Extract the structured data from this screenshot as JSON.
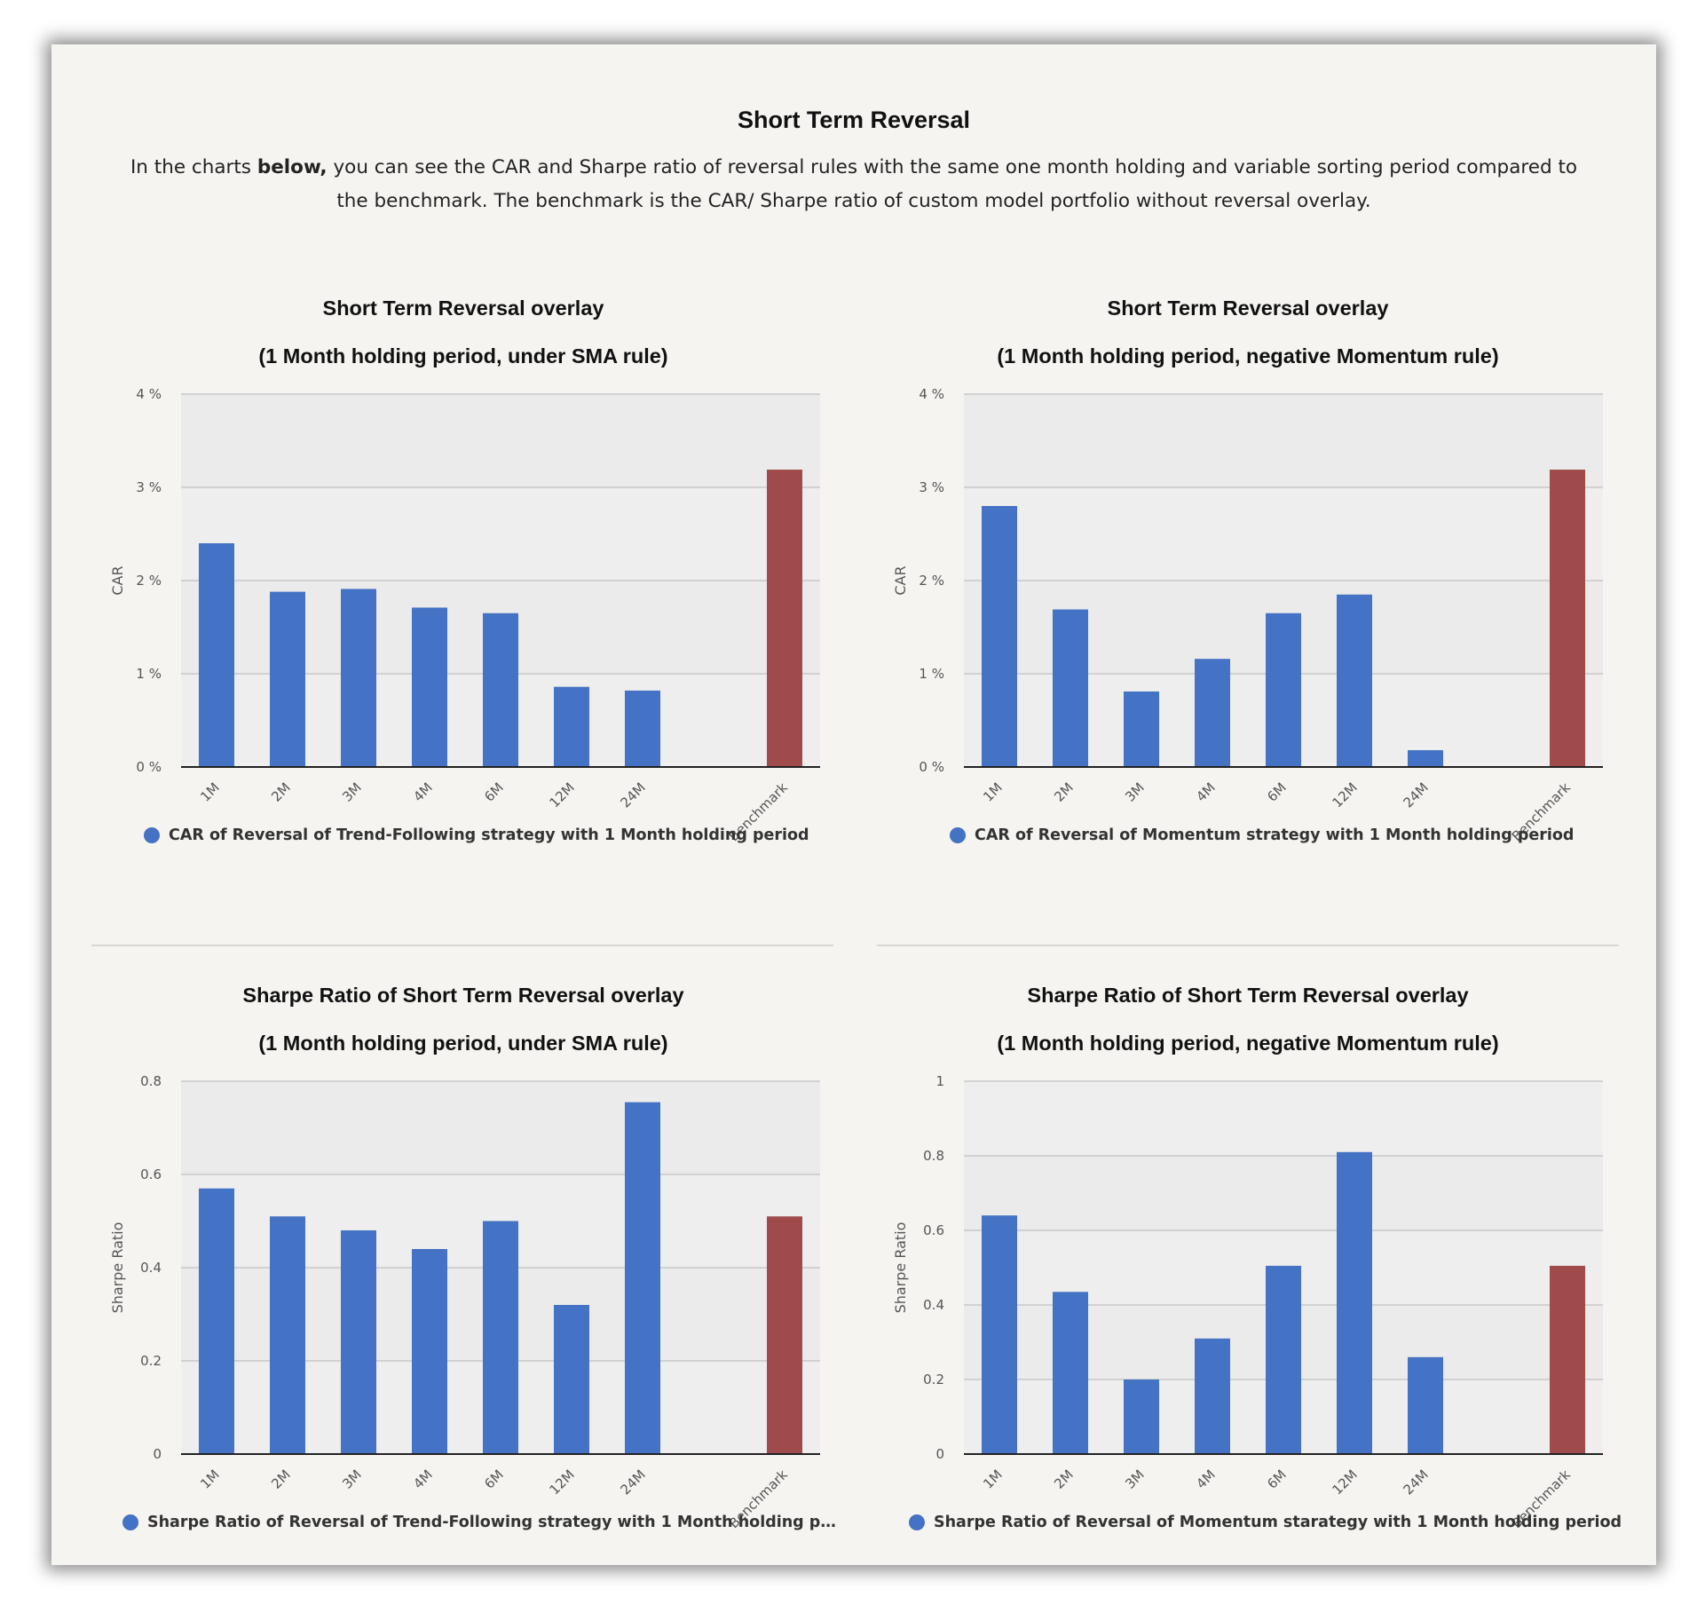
{
  "header": {
    "title": "Short Term Reversal",
    "intro_before": "In the charts ",
    "intro_bold": "below,",
    "intro_after": " you can see the CAR and Sharpe ratio of reversal rules with the same one month holding and variable sorting period compared to the benchmark. The benchmark is the CAR/ Sharpe ratio of custom model portfolio without reversal overlay."
  },
  "colors": {
    "bar": "#4472c4",
    "benchmark": "#a04b4b",
    "plot_bg": "#ebebeb",
    "grid": "#c8c8c8"
  },
  "chart_data": [
    {
      "type": "bar",
      "title": "Short Term Reversal overlay",
      "subtitle": "(1 Month holding period, under SMA rule)",
      "ylabel": "CAR",
      "categories": [
        "1M",
        "2M",
        "3M",
        "4M",
        "6M",
        "12M",
        "24M",
        "",
        "Benchmark"
      ],
      "values": [
        2.4,
        1.88,
        1.91,
        1.71,
        1.65,
        0.86,
        0.82,
        null,
        3.19
      ],
      "highlight": [
        false,
        false,
        false,
        false,
        false,
        false,
        false,
        false,
        true
      ],
      "ylim": [
        0,
        4
      ],
      "yticks": [
        0,
        1,
        2,
        3,
        4
      ],
      "ytick_labels": [
        "0 %",
        "1 %",
        "2 %",
        "3 %",
        "4 %"
      ],
      "grid": true,
      "legend": "CAR of Reversal of Trend-Following strategy with 1 Month holding period",
      "legend_position": "bottom"
    },
    {
      "type": "bar",
      "title": "Short Term Reversal overlay",
      "subtitle": "(1 Month holding period, negative Momentum rule)",
      "ylabel": "CAR",
      "categories": [
        "1M",
        "2M",
        "3M",
        "4M",
        "6M",
        "12M",
        "24M",
        "",
        "Benchmark"
      ],
      "values": [
        2.8,
        1.69,
        0.81,
        1.16,
        1.65,
        1.85,
        0.18,
        null,
        3.19
      ],
      "highlight": [
        false,
        false,
        false,
        false,
        false,
        false,
        false,
        false,
        true
      ],
      "ylim": [
        0,
        4
      ],
      "yticks": [
        0,
        1,
        2,
        3,
        4
      ],
      "ytick_labels": [
        "0 %",
        "1 %",
        "2 %",
        "3 %",
        "4 %"
      ],
      "grid": true,
      "legend": "CAR of Reversal of Momentum strategy with 1 Month holding period",
      "legend_position": "bottom"
    },
    {
      "type": "bar",
      "title": "Sharpe Ratio of Short Term Reversal overlay",
      "subtitle": "(1 Month holding period, under SMA rule)",
      "ylabel": "Sharpe Ratio",
      "categories": [
        "1M",
        "2M",
        "3M",
        "4M",
        "6M",
        "12M",
        "24M",
        "",
        "Benchmark"
      ],
      "values": [
        0.57,
        0.51,
        0.48,
        0.44,
        0.5,
        0.32,
        0.755,
        null,
        0.51
      ],
      "highlight": [
        false,
        false,
        false,
        false,
        false,
        false,
        false,
        false,
        true
      ],
      "ylim": [
        0,
        0.8
      ],
      "yticks": [
        0,
        0.2,
        0.4,
        0.6,
        0.8
      ],
      "ytick_labels": [
        "0",
        "0.2",
        "0.4",
        "0.6",
        "0.8"
      ],
      "grid": true,
      "legend": "Sharpe Ratio of Reversal of Trend-Following strategy with 1 Month holding p…",
      "legend_position": "bottom"
    },
    {
      "type": "bar",
      "title": "Sharpe Ratio of Short Term Reversal overlay",
      "subtitle": "(1 Month holding period, negative Momentum rule)",
      "ylabel": "Sharpe Ratio",
      "categories": [
        "1M",
        "2M",
        "3M",
        "4M",
        "6M",
        "12M",
        "24M",
        "",
        "Benchmark"
      ],
      "values": [
        0.64,
        0.435,
        0.2,
        0.31,
        0.505,
        0.81,
        0.26,
        null,
        0.505
      ],
      "highlight": [
        false,
        false,
        false,
        false,
        false,
        false,
        false,
        false,
        true
      ],
      "ylim": [
        0,
        1
      ],
      "yticks": [
        0,
        0.2,
        0.4,
        0.6,
        0.8,
        1
      ],
      "ytick_labels": [
        "0",
        "0.2",
        "0.4",
        "0.6",
        "0.8",
        "1"
      ],
      "grid": true,
      "legend": "Sharpe Ratio of Reversal of Momentum starategy with 1 Month holding period",
      "legend_position": "bottom"
    }
  ]
}
